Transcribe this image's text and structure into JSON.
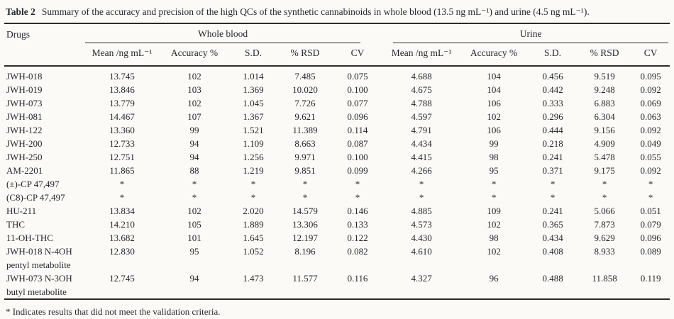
{
  "caption": {
    "label": "Table 2",
    "text": "Summary of the accuracy and precision of the high QCs of the synthetic cannabinoids in whole blood (13.5 ng mL⁻¹) and urine (4.5 ng mL⁻¹)."
  },
  "table": {
    "row_header": "Drugs",
    "groups": [
      {
        "label": "Whole blood"
      },
      {
        "label": "Urine"
      }
    ],
    "columns": [
      "Mean /ng mL⁻¹",
      "Accuracy %",
      "S.D.",
      "% RSD",
      "CV"
    ],
    "rows": [
      {
        "drug": "JWH-018",
        "whole_blood": [
          "13.745",
          "102",
          "1.014",
          "7.485",
          "0.075"
        ],
        "urine": [
          "4.688",
          "104",
          "0.456",
          "9.519",
          "0.095"
        ]
      },
      {
        "drug": "JWH-019",
        "whole_blood": [
          "13.846",
          "103",
          "1.369",
          "10.020",
          "0.100"
        ],
        "urine": [
          "4.675",
          "104",
          "0.442",
          "9.248",
          "0.092"
        ]
      },
      {
        "drug": "JWH-073",
        "whole_blood": [
          "13.779",
          "102",
          "1.045",
          "7.726",
          "0.077"
        ],
        "urine": [
          "4.788",
          "106",
          "0.333",
          "6.883",
          "0.069"
        ]
      },
      {
        "drug": "JWH-081",
        "whole_blood": [
          "14.467",
          "107",
          "1.367",
          "9.621",
          "0.096"
        ],
        "urine": [
          "4.597",
          "102",
          "0.296",
          "6.304",
          "0.063"
        ]
      },
      {
        "drug": "JWH-122",
        "whole_blood": [
          "13.360",
          "99",
          "1.521",
          "11.389",
          "0.114"
        ],
        "urine": [
          "4.791",
          "106",
          "0.444",
          "9.156",
          "0.092"
        ]
      },
      {
        "drug": "JWH-200",
        "whole_blood": [
          "12.733",
          "94",
          "1.109",
          "8.663",
          "0.087"
        ],
        "urine": [
          "4.434",
          "99",
          "0.218",
          "4.909",
          "0.049"
        ]
      },
      {
        "drug": "JWH-250",
        "whole_blood": [
          "12.751",
          "94",
          "1.256",
          "9.971",
          "0.100"
        ],
        "urine": [
          "4.415",
          "98",
          "0.241",
          "5.478",
          "0.055"
        ]
      },
      {
        "drug": "AM-2201",
        "whole_blood": [
          "11.865",
          "88",
          "1.219",
          "9.851",
          "0.099"
        ],
        "urine": [
          "4.266",
          "95",
          "0.371",
          "9.175",
          "0.092"
        ]
      },
      {
        "drug": "(±)-CP 47,497",
        "whole_blood": [
          "*",
          "*",
          "*",
          "*",
          "*"
        ],
        "urine": [
          "*",
          "*",
          "*",
          "*",
          "*"
        ]
      },
      {
        "drug": "(C8)-CP 47,497",
        "whole_blood": [
          "*",
          "*",
          "*",
          "*",
          "*"
        ],
        "urine": [
          "*",
          "*",
          "*",
          "*",
          "*"
        ]
      },
      {
        "drug": "HU-211",
        "whole_blood": [
          "13.834",
          "102",
          "2.020",
          "14.579",
          "0.146"
        ],
        "urine": [
          "4.885",
          "109",
          "0.241",
          "5.066",
          "0.051"
        ]
      },
      {
        "drug": "THC",
        "whole_blood": [
          "14.210",
          "105",
          "1.889",
          "13.306",
          "0.133"
        ],
        "urine": [
          "4.573",
          "102",
          "0.365",
          "7.873",
          "0.079"
        ]
      },
      {
        "drug": "11-OH-THC",
        "whole_blood": [
          "13.682",
          "101",
          "1.645",
          "12.197",
          "0.122"
        ],
        "urine": [
          "4.430",
          "98",
          "0.434",
          "9.629",
          "0.096"
        ]
      },
      {
        "drug": "JWH-018 N-4OH pentyl metabolite",
        "whole_blood": [
          "12.830",
          "95",
          "1.052",
          "8.196",
          "0.082"
        ],
        "urine": [
          "4.610",
          "102",
          "0.408",
          "8.933",
          "0.089"
        ]
      },
      {
        "drug": "JWH-073 N-3OH butyl metabolite",
        "whole_blood": [
          "12.745",
          "94",
          "1.473",
          "11.577",
          "0.116"
        ],
        "urine": [
          "4.327",
          "96",
          "0.488",
          "11.858",
          "0.119"
        ]
      }
    ]
  },
  "footnote": "* Indicates results that did not meet the validation criteria."
}
